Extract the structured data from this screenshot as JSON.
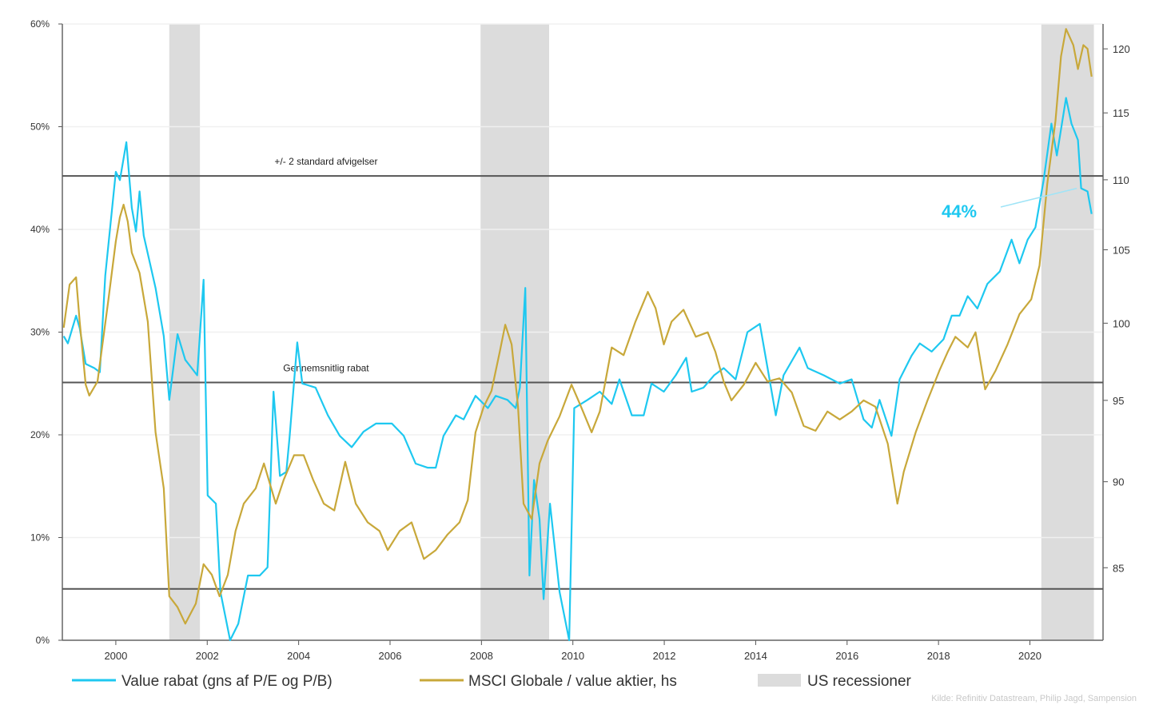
{
  "chart_data": {
    "type": "line",
    "x_range": [
      1998.83,
      2021.6
    ],
    "x_ticks": [
      "2000",
      "2002",
      "2004",
      "2006",
      "2008",
      "2010",
      "2012",
      "2014",
      "2016",
      "2018",
      "2020"
    ],
    "y_left": {
      "lim": [
        0,
        60
      ],
      "scale": "linear",
      "ticks": [
        0,
        10,
        20,
        30,
        40,
        50,
        60
      ],
      "tick_labels": [
        "0%",
        "10%",
        "20%",
        "30%",
        "40%",
        "50%",
        "60%"
      ]
    },
    "y_right": {
      "lim": [
        81,
        122
      ],
      "scale": "log",
      "ticks": [
        85,
        90,
        95,
        100,
        105,
        110,
        115,
        120
      ],
      "tick_labels": [
        "85",
        "90",
        "95",
        "100",
        "105",
        "110",
        "115",
        "120"
      ]
    },
    "grid": "horizontal",
    "legend_position": "bottom",
    "series": [
      {
        "name": "Value rabat (gns af P/E og P/B)",
        "axis": "left",
        "color": "#1ec8f0",
        "points": [
          [
            1998.86,
            29.6
          ],
          [
            1998.95,
            28.9
          ],
          [
            1999.13,
            31.6
          ],
          [
            1999.21,
            30.4
          ],
          [
            1999.34,
            26.9
          ],
          [
            1999.53,
            26.5
          ],
          [
            1999.65,
            26.1
          ],
          [
            1999.77,
            35.5
          ],
          [
            2000.0,
            45.6
          ],
          [
            2000.09,
            44.8
          ],
          [
            2000.23,
            48.5
          ],
          [
            2000.35,
            42.1
          ],
          [
            2000.44,
            39.8
          ],
          [
            2000.52,
            43.7
          ],
          [
            2000.61,
            39.4
          ],
          [
            2000.87,
            34.3
          ],
          [
            2001.05,
            29.6
          ],
          [
            2001.17,
            23.4
          ],
          [
            2001.35,
            29.8
          ],
          [
            2001.52,
            27.3
          ],
          [
            2001.66,
            26.5
          ],
          [
            2001.78,
            25.8
          ],
          [
            2001.92,
            35.1
          ],
          [
            2002.01,
            14.1
          ],
          [
            2002.19,
            13.3
          ],
          [
            2002.29,
            4.7
          ],
          [
            2002.5,
            0
          ],
          [
            2002.68,
            1.6
          ],
          [
            2002.89,
            6.3
          ],
          [
            2003.15,
            6.3
          ],
          [
            2003.32,
            7.1
          ],
          [
            2003.45,
            24.2
          ],
          [
            2003.59,
            16.0
          ],
          [
            2003.73,
            16.4
          ],
          [
            2003.8,
            19.7
          ],
          [
            2003.97,
            29.0
          ],
          [
            2004.08,
            25.0
          ],
          [
            2004.37,
            24.6
          ],
          [
            2004.64,
            21.9
          ],
          [
            2004.9,
            19.9
          ],
          [
            2005.16,
            18.8
          ],
          [
            2005.42,
            20.3
          ],
          [
            2005.69,
            21.1
          ],
          [
            2006.04,
            21.1
          ],
          [
            2006.3,
            19.9
          ],
          [
            2006.56,
            17.2
          ],
          [
            2006.82,
            16.8
          ],
          [
            2007.0,
            16.8
          ],
          [
            2007.17,
            19.9
          ],
          [
            2007.44,
            21.9
          ],
          [
            2007.61,
            21.5
          ],
          [
            2007.87,
            23.8
          ],
          [
            2008.14,
            22.6
          ],
          [
            2008.31,
            23.8
          ],
          [
            2008.57,
            23.4
          ],
          [
            2008.75,
            22.6
          ],
          [
            2008.84,
            24.6
          ],
          [
            2008.96,
            34.3
          ],
          [
            2009.05,
            6.3
          ],
          [
            2009.15,
            15.6
          ],
          [
            2009.27,
            11.8
          ],
          [
            2009.36,
            4.0
          ],
          [
            2009.5,
            13.3
          ],
          [
            2009.71,
            4.7
          ],
          [
            2009.92,
            0
          ],
          [
            2010.03,
            22.6
          ],
          [
            2010.32,
            23.4
          ],
          [
            2010.59,
            24.2
          ],
          [
            2010.85,
            23.0
          ],
          [
            2011.02,
            25.4
          ],
          [
            2011.29,
            21.9
          ],
          [
            2011.55,
            21.9
          ],
          [
            2011.72,
            25.0
          ],
          [
            2011.99,
            24.2
          ],
          [
            2012.25,
            25.8
          ],
          [
            2012.48,
            27.5
          ],
          [
            2012.6,
            24.2
          ],
          [
            2012.86,
            24.6
          ],
          [
            2013.09,
            25.8
          ],
          [
            2013.3,
            26.5
          ],
          [
            2013.56,
            25.4
          ],
          [
            2013.82,
            30.0
          ],
          [
            2014.09,
            30.8
          ],
          [
            2014.26,
            26.5
          ],
          [
            2014.44,
            21.9
          ],
          [
            2014.61,
            25.8
          ],
          [
            2014.96,
            28.5
          ],
          [
            2015.14,
            26.5
          ],
          [
            2015.49,
            25.8
          ],
          [
            2015.84,
            25.0
          ],
          [
            2016.1,
            25.4
          ],
          [
            2016.36,
            21.5
          ],
          [
            2016.54,
            20.7
          ],
          [
            2016.71,
            23.4
          ],
          [
            2016.97,
            19.9
          ],
          [
            2017.15,
            25.4
          ],
          [
            2017.41,
            27.7
          ],
          [
            2017.59,
            28.9
          ],
          [
            2017.85,
            28.1
          ],
          [
            2018.11,
            29.3
          ],
          [
            2018.29,
            31.6
          ],
          [
            2018.46,
            31.6
          ],
          [
            2018.64,
            33.5
          ],
          [
            2018.85,
            32.3
          ],
          [
            2019.07,
            34.7
          ],
          [
            2019.34,
            35.9
          ],
          [
            2019.6,
            39.0
          ],
          [
            2019.77,
            36.7
          ],
          [
            2019.95,
            39.0
          ],
          [
            2020.12,
            40.2
          ],
          [
            2020.3,
            44.8
          ],
          [
            2020.47,
            50.3
          ],
          [
            2020.59,
            47.2
          ],
          [
            2020.79,
            52.8
          ],
          [
            2020.91,
            50.3
          ],
          [
            2021.05,
            48.7
          ],
          [
            2021.12,
            44.0
          ],
          [
            2021.26,
            43.7
          ],
          [
            2021.35,
            41.5
          ]
        ]
      },
      {
        "name": "MSCI Globale / value aktier, hs",
        "axis": "right",
        "color": "#c8a83a",
        "points": [
          [
            1998.86,
            99.7
          ],
          [
            1998.99,
            102.6
          ],
          [
            1999.13,
            103.1
          ],
          [
            1999.21,
            100.1
          ],
          [
            1999.34,
            96.0
          ],
          [
            1999.42,
            95.3
          ],
          [
            1999.6,
            96.2
          ],
          [
            1999.83,
            101.4
          ],
          [
            2000.0,
            105.6
          ],
          [
            2000.09,
            107.3
          ],
          [
            2000.17,
            108.2
          ],
          [
            2000.26,
            107.0
          ],
          [
            2000.35,
            104.8
          ],
          [
            2000.52,
            103.4
          ],
          [
            2000.7,
            100.1
          ],
          [
            2000.87,
            93.0
          ],
          [
            2001.05,
            89.6
          ],
          [
            2001.17,
            83.4
          ],
          [
            2001.35,
            82.8
          ],
          [
            2001.52,
            81.9
          ],
          [
            2001.75,
            83.0
          ],
          [
            2001.92,
            85.2
          ],
          [
            2002.1,
            84.6
          ],
          [
            2002.27,
            83.4
          ],
          [
            2002.45,
            84.6
          ],
          [
            2002.62,
            87.1
          ],
          [
            2002.8,
            88.7
          ],
          [
            2003.06,
            89.6
          ],
          [
            2003.24,
            91.1
          ],
          [
            2003.5,
            88.7
          ],
          [
            2003.67,
            90.1
          ],
          [
            2003.9,
            91.6
          ],
          [
            2004.11,
            91.6
          ],
          [
            2004.32,
            90.1
          ],
          [
            2004.55,
            88.7
          ],
          [
            2004.78,
            88.3
          ],
          [
            2005.02,
            91.2
          ],
          [
            2005.25,
            88.7
          ],
          [
            2005.51,
            87.6
          ],
          [
            2005.77,
            87.1
          ],
          [
            2005.95,
            86.0
          ],
          [
            2006.21,
            87.1
          ],
          [
            2006.47,
            87.6
          ],
          [
            2006.74,
            85.5
          ],
          [
            2007.0,
            86.0
          ],
          [
            2007.26,
            86.9
          ],
          [
            2007.52,
            87.6
          ],
          [
            2007.7,
            88.9
          ],
          [
            2007.87,
            93.0
          ],
          [
            2008.05,
            94.6
          ],
          [
            2008.22,
            95.6
          ],
          [
            2008.4,
            98.1
          ],
          [
            2008.52,
            99.9
          ],
          [
            2008.66,
            98.6
          ],
          [
            2008.8,
            94.6
          ],
          [
            2008.92,
            88.7
          ],
          [
            2009.1,
            87.8
          ],
          [
            2009.27,
            91.1
          ],
          [
            2009.45,
            92.5
          ],
          [
            2009.71,
            94.0
          ],
          [
            2009.97,
            96.0
          ],
          [
            2010.15,
            94.8
          ],
          [
            2010.41,
            93.0
          ],
          [
            2010.59,
            94.3
          ],
          [
            2010.85,
            98.4
          ],
          [
            2011.11,
            97.9
          ],
          [
            2011.37,
            100.1
          ],
          [
            2011.64,
            102.1
          ],
          [
            2011.81,
            101.0
          ],
          [
            2011.99,
            98.6
          ],
          [
            2012.16,
            100.1
          ],
          [
            2012.42,
            100.9
          ],
          [
            2012.69,
            99.1
          ],
          [
            2012.95,
            99.4
          ],
          [
            2013.12,
            98.1
          ],
          [
            2013.3,
            96.2
          ],
          [
            2013.47,
            95.0
          ],
          [
            2013.74,
            96.0
          ],
          [
            2014.0,
            97.4
          ],
          [
            2014.26,
            96.2
          ],
          [
            2014.52,
            96.4
          ],
          [
            2014.79,
            95.5
          ],
          [
            2015.05,
            93.4
          ],
          [
            2015.31,
            93.1
          ],
          [
            2015.57,
            94.3
          ],
          [
            2015.84,
            93.8
          ],
          [
            2016.1,
            94.3
          ],
          [
            2016.36,
            95.0
          ],
          [
            2016.62,
            94.6
          ],
          [
            2016.89,
            92.3
          ],
          [
            2017.1,
            88.7
          ],
          [
            2017.24,
            90.6
          ],
          [
            2017.5,
            93.0
          ],
          [
            2017.76,
            95.0
          ],
          [
            2018.02,
            96.9
          ],
          [
            2018.2,
            98.1
          ],
          [
            2018.37,
            99.1
          ],
          [
            2018.64,
            98.4
          ],
          [
            2018.81,
            99.4
          ],
          [
            2019.02,
            95.7
          ],
          [
            2019.25,
            96.9
          ],
          [
            2019.51,
            98.6
          ],
          [
            2019.77,
            100.6
          ],
          [
            2020.03,
            101.6
          ],
          [
            2020.21,
            103.9
          ],
          [
            2020.38,
            109.7
          ],
          [
            2020.56,
            114.4
          ],
          [
            2020.68,
            119.4
          ],
          [
            2020.79,
            121.6
          ],
          [
            2020.95,
            120.3
          ],
          [
            2021.05,
            118.4
          ],
          [
            2021.17,
            120.3
          ],
          [
            2021.26,
            120.0
          ],
          [
            2021.35,
            117.8
          ]
        ]
      }
    ],
    "recessions": {
      "name": "US recessioner",
      "color": "#dcdcdc",
      "periods": [
        [
          2001.17,
          2001.84
        ],
        [
          2007.98,
          2009.48
        ],
        [
          2020.25,
          2021.4
        ]
      ]
    },
    "reference_lines": [
      {
        "value": 45.2,
        "label": "+/- 2 standard afvigelser"
      },
      {
        "value": 25.1,
        "label": "Gennemsnitlig rabat"
      },
      {
        "value": 5.0,
        "label": ""
      }
    ],
    "annotation": {
      "text": "44%",
      "color": "#1ec8f0",
      "x": 2021.2,
      "y": 44
    }
  },
  "source": "Kilde: Refinitiv Datastream, Philip Jagd, Sampension"
}
